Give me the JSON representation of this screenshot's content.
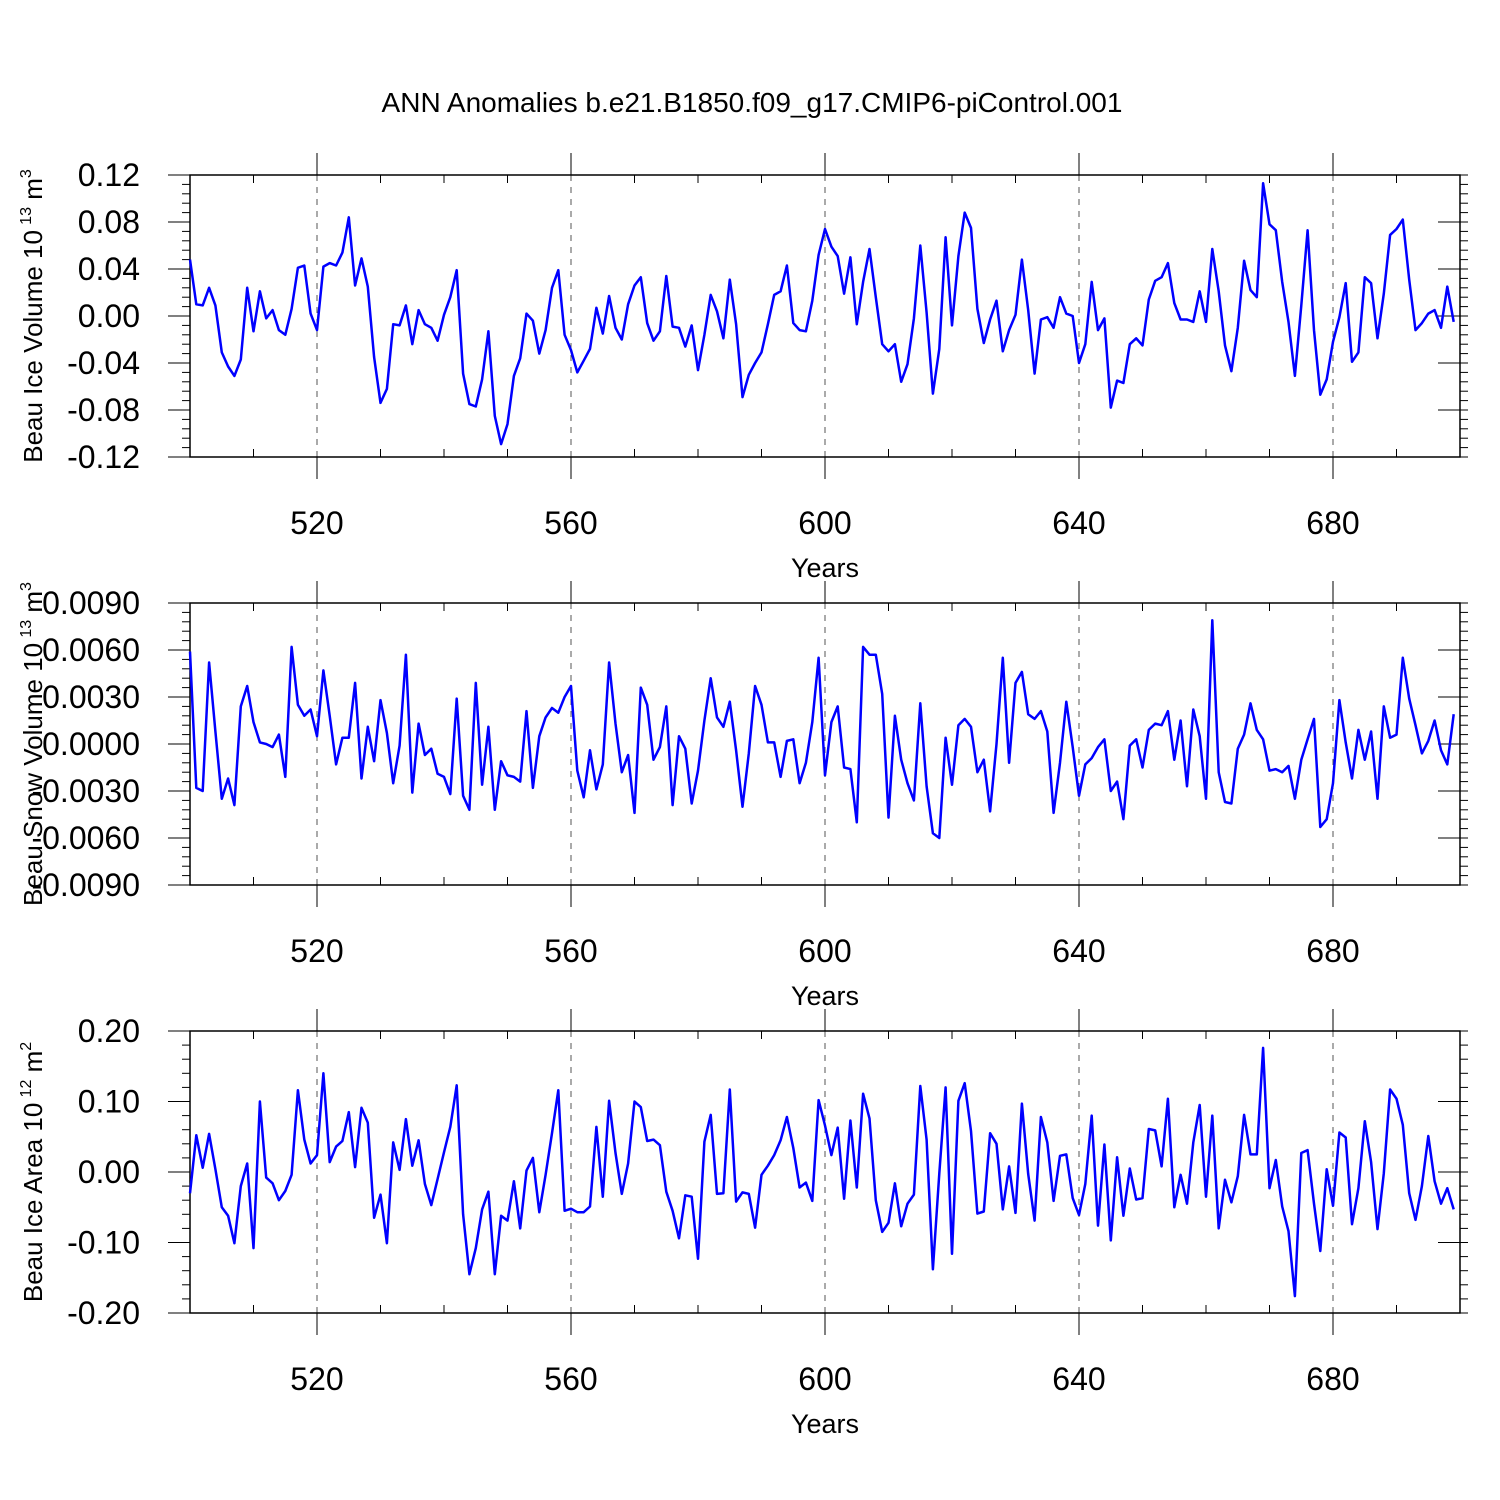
{
  "title": "ANN Anomalies b.e21.B1850.f09_g17.CMIP6-piControl.001",
  "line_color": "#0000ff",
  "chart_data": [
    {
      "type": "line",
      "ylabel_base": "Beau Ice Volume 10",
      "ylabel_exp": "13",
      "ylabel_unit": "m",
      "ylabel_unit_exp": "3",
      "xlabel": "Years",
      "xlim": [
        500,
        700
      ],
      "xticks": [
        520,
        560,
        600,
        640,
        680
      ],
      "ylim": [
        -0.12,
        0.12
      ],
      "yticks": [
        0.12,
        0.08,
        0.04,
        0.0,
        -0.04,
        -0.08,
        -0.12
      ],
      "ytick_labels": [
        "0.12",
        "0.08",
        "0.04",
        "0.00",
        "-0.04",
        "-0.08",
        "-0.12"
      ],
      "x_start": 500,
      "x_step": 1,
      "values": [
        0.048,
        0.01,
        0.009,
        0.024,
        0.009,
        -0.031,
        -0.043,
        -0.051,
        -0.037,
        0.024,
        -0.013,
        0.021,
        -0.002,
        0.005,
        -0.012,
        -0.016,
        0.006,
        0.041,
        0.043,
        0.002,
        -0.012,
        0.042,
        0.045,
        0.043,
        0.054,
        0.084,
        0.026,
        0.049,
        0.025,
        -0.035,
        -0.074,
        -0.062,
        -0.007,
        -0.008,
        0.009,
        -0.024,
        0.005,
        -0.007,
        -0.01,
        -0.021,
        0.001,
        0.016,
        0.039,
        -0.049,
        -0.075,
        -0.077,
        -0.054,
        -0.013,
        -0.085,
        -0.109,
        -0.092,
        -0.051,
        -0.036,
        0.002,
        -0.004,
        -0.032,
        -0.012,
        0.024,
        0.039,
        -0.016,
        -0.029,
        -0.048,
        -0.038,
        -0.028,
        0.007,
        -0.015,
        0.017,
        -0.01,
        -0.02,
        0.01,
        0.026,
        0.033,
        -0.006,
        -0.021,
        -0.013,
        0.034,
        -0.009,
        -0.01,
        -0.026,
        -0.008,
        -0.046,
        -0.016,
        0.018,
        0.004,
        -0.019,
        0.031,
        -0.007,
        -0.069,
        -0.05,
        -0.04,
        -0.031,
        -0.007,
        0.018,
        0.021,
        0.043,
        -0.006,
        -0.012,
        -0.013,
        0.013,
        0.052,
        0.074,
        0.059,
        0.051,
        0.019,
        0.05,
        -0.007,
        0.029,
        0.057,
        0.016,
        -0.024,
        -0.03,
        -0.024,
        -0.056,
        -0.041,
        -0.002,
        0.06,
        0.003,
        -0.066,
        -0.028,
        0.067,
        -0.008,
        0.051,
        0.088,
        0.075,
        0.006,
        -0.023,
        -0.003,
        0.013,
        -0.03,
        -0.012,
        0.001,
        0.048,
        0.005,
        -0.049,
        -0.003,
        -0.001,
        -0.01,
        0.016,
        0.002,
        0.0,
        -0.04,
        -0.024,
        0.029,
        -0.012,
        -0.002,
        -0.078,
        -0.055,
        -0.057,
        -0.024,
        -0.019,
        -0.025,
        0.014,
        0.03,
        0.033,
        0.045,
        0.011,
        -0.003,
        -0.003,
        -0.005,
        0.021,
        -0.005,
        0.057,
        0.021,
        -0.025,
        -0.047,
        -0.01,
        0.047,
        0.022,
        0.016,
        0.113,
        0.078,
        0.073,
        0.029,
        -0.005,
        -0.051,
        0.009,
        0.073,
        -0.012,
        -0.067,
        -0.054,
        -0.022,
        -0.001,
        0.028,
        -0.039,
        -0.031,
        0.033,
        0.028,
        -0.019,
        0.019,
        0.069,
        0.074,
        0.082,
        0.031,
        -0.012,
        -0.006,
        0.002,
        0.005,
        -0.01,
        0.025,
        -0.005
      ]
    },
    {
      "type": "line",
      "ylabel_base": "Beau Snow Volume 10",
      "ylabel_exp": "13",
      "ylabel_unit": "m",
      "ylabel_unit_exp": "3",
      "xlabel": "Years",
      "xlim": [
        500,
        700
      ],
      "xticks": [
        520,
        560,
        600,
        640,
        680
      ],
      "ylim": [
        -0.009,
        0.009
      ],
      "yticks": [
        0.009,
        0.006,
        0.003,
        0.0,
        -0.003,
        -0.006,
        -0.009
      ],
      "ytick_labels": [
        "0.0090",
        "0.0060",
        "0.0030",
        "0.0000",
        "-0.0030",
        "-0.0060",
        "-0.0090"
      ],
      "x_start": 500,
      "x_step": 1,
      "values": [
        0.0059,
        -0.0028,
        -0.003,
        0.0052,
        0.0008,
        -0.0035,
        -0.0022,
        -0.0039,
        0.0024,
        0.0037,
        0.0014,
        0.0001,
        0.0,
        -0.0002,
        0.0006,
        -0.0021,
        0.0062,
        0.0025,
        0.0018,
        0.0022,
        0.0005,
        0.0047,
        0.0018,
        -0.0013,
        0.0004,
        0.0004,
        0.0039,
        -0.0022,
        0.0011,
        -0.0011,
        0.0028,
        0.0007,
        -0.0025,
        -0.0001,
        0.0057,
        -0.0031,
        0.0013,
        -0.0007,
        -0.0003,
        -0.0019,
        -0.0021,
        -0.0032,
        0.0029,
        -0.0033,
        -0.0042,
        0.0039,
        -0.0026,
        0.0011,
        -0.0042,
        -0.0011,
        -0.002,
        -0.0021,
        -0.0024,
        0.0021,
        -0.0028,
        0.0005,
        0.0017,
        0.0023,
        0.002,
        0.003,
        0.0037,
        -0.0017,
        -0.0034,
        -0.0004,
        -0.0029,
        -0.0013,
        0.0052,
        0.0013,
        -0.0018,
        -0.0007,
        -0.0044,
        0.0036,
        0.0025,
        -0.001,
        -0.0002,
        0.0024,
        -0.0039,
        0.0005,
        -0.0003,
        -0.0038,
        -0.0017,
        0.0015,
        0.0042,
        0.0017,
        0.0011,
        0.0027,
        -0.0004,
        -0.004,
        -0.0006,
        0.0037,
        0.0025,
        0.0001,
        0.0001,
        -0.0021,
        0.0002,
        0.0003,
        -0.0025,
        -0.0012,
        0.0014,
        0.0055,
        -0.002,
        0.0014,
        0.0024,
        -0.0015,
        -0.0016,
        -0.005,
        0.0062,
        0.0057,
        0.0057,
        0.0032,
        -0.0047,
        0.0018,
        -0.001,
        -0.0025,
        -0.0036,
        0.0026,
        -0.0027,
        -0.0057,
        -0.006,
        0.0004,
        -0.0026,
        0.0012,
        0.0016,
        0.0011,
        -0.0018,
        -0.001,
        -0.0043,
        0.0,
        0.0055,
        -0.0012,
        0.0039,
        0.0046,
        0.0019,
        0.0016,
        0.0021,
        0.0008,
        -0.0044,
        -0.0012,
        0.0027,
        -0.0002,
        -0.0033,
        -0.0013,
        -0.0009,
        -0.0002,
        0.0003,
        -0.003,
        -0.0024,
        -0.0048,
        -0.0001,
        0.0003,
        -0.0015,
        0.0009,
        0.0013,
        0.0012,
        0.0021,
        -0.001,
        0.0015,
        -0.0027,
        0.0022,
        0.0005,
        -0.0035,
        0.0079,
        -0.0018,
        -0.0037,
        -0.0038,
        -0.0003,
        0.0006,
        0.0026,
        0.0009,
        0.0003,
        -0.0017,
        -0.0016,
        -0.0018,
        -0.0014,
        -0.0035,
        -0.001,
        0.0003,
        0.0016,
        -0.0053,
        -0.0048,
        -0.0025,
        0.0028,
        0.0001,
        -0.0022,
        0.0009,
        -0.001,
        0.0008,
        -0.0035,
        0.0024,
        0.0004,
        0.0006,
        0.0055,
        0.0029,
        0.0012,
        -0.0006,
        0.0002,
        0.0015,
        -0.0004,
        -0.0013,
        0.0019
      ]
    },
    {
      "type": "line",
      "ylabel_base": "Beau Ice Area 10",
      "ylabel_exp": "12",
      "ylabel_unit": "m",
      "ylabel_unit_exp": "2",
      "xlabel": "Years",
      "xlim": [
        500,
        700
      ],
      "xticks": [
        520,
        560,
        600,
        640,
        680
      ],
      "ylim": [
        -0.2,
        0.2
      ],
      "yticks": [
        0.2,
        0.1,
        0.0,
        -0.1,
        -0.2
      ],
      "ytick_labels": [
        "0.20",
        "0.10",
        "0.00",
        "-0.10",
        "-0.20"
      ],
      "x_start": 500,
      "x_step": 1,
      "values": [
        -0.03,
        0.052,
        0.006,
        0.054,
        0.004,
        -0.05,
        -0.062,
        -0.101,
        -0.02,
        0.012,
        -0.108,
        0.1,
        -0.008,
        -0.016,
        -0.04,
        -0.027,
        -0.004,
        0.116,
        0.046,
        0.012,
        0.024,
        0.14,
        0.014,
        0.036,
        0.044,
        0.085,
        0.007,
        0.091,
        0.07,
        -0.065,
        -0.032,
        -0.101,
        0.042,
        0.003,
        0.075,
        0.009,
        0.045,
        -0.017,
        -0.047,
        -0.01,
        0.028,
        0.064,
        0.123,
        -0.06,
        -0.145,
        -0.108,
        -0.053,
        -0.028,
        -0.145,
        -0.062,
        -0.069,
        -0.013,
        -0.08,
        0.002,
        0.02,
        -0.057,
        -0.004,
        0.055,
        0.116,
        -0.055,
        -0.052,
        -0.057,
        -0.057,
        -0.049,
        0.064,
        -0.035,
        0.101,
        0.027,
        -0.031,
        0.012,
        0.1,
        0.092,
        0.044,
        0.046,
        0.038,
        -0.028,
        -0.055,
        -0.094,
        -0.033,
        -0.035,
        -0.123,
        0.043,
        0.081,
        -0.031,
        -0.03,
        0.117,
        -0.042,
        -0.029,
        -0.031,
        -0.079,
        -0.004,
        0.009,
        0.024,
        0.045,
        0.078,
        0.034,
        -0.022,
        -0.015,
        -0.041,
        0.102,
        0.066,
        0.024,
        0.063,
        -0.038,
        0.073,
        -0.022,
        0.111,
        0.076,
        -0.04,
        -0.085,
        -0.072,
        -0.016,
        -0.077,
        -0.045,
        -0.032,
        0.122,
        0.046,
        -0.138,
        -0.002,
        0.12,
        -0.116,
        0.101,
        0.126,
        0.058,
        -0.059,
        -0.056,
        0.055,
        0.04,
        -0.053,
        0.008,
        -0.058,
        0.097,
        -0.003,
        -0.069,
        0.078,
        0.042,
        -0.041,
        0.023,
        0.025,
        -0.037,
        -0.061,
        -0.017,
        0.08,
        -0.076,
        0.039,
        -0.097,
        0.021,
        -0.062,
        0.005,
        -0.039,
        -0.037,
        0.061,
        0.059,
        0.008,
        0.104,
        -0.05,
        -0.004,
        -0.045,
        0.042,
        0.095,
        -0.035,
        0.08,
        -0.08,
        -0.011,
        -0.043,
        -0.006,
        0.081,
        0.025,
        0.025,
        0.176,
        -0.023,
        0.017,
        -0.049,
        -0.084,
        -0.176,
        0.027,
        0.031,
        -0.045,
        -0.112,
        0.004,
        -0.048,
        0.056,
        0.049,
        -0.074,
        -0.023,
        0.072,
        0.014,
        -0.081,
        -0.002,
        0.117,
        0.104,
        0.067,
        -0.03,
        -0.068,
        -0.02,
        0.051,
        -0.013,
        -0.045,
        -0.023,
        -0.053
      ]
    }
  ]
}
